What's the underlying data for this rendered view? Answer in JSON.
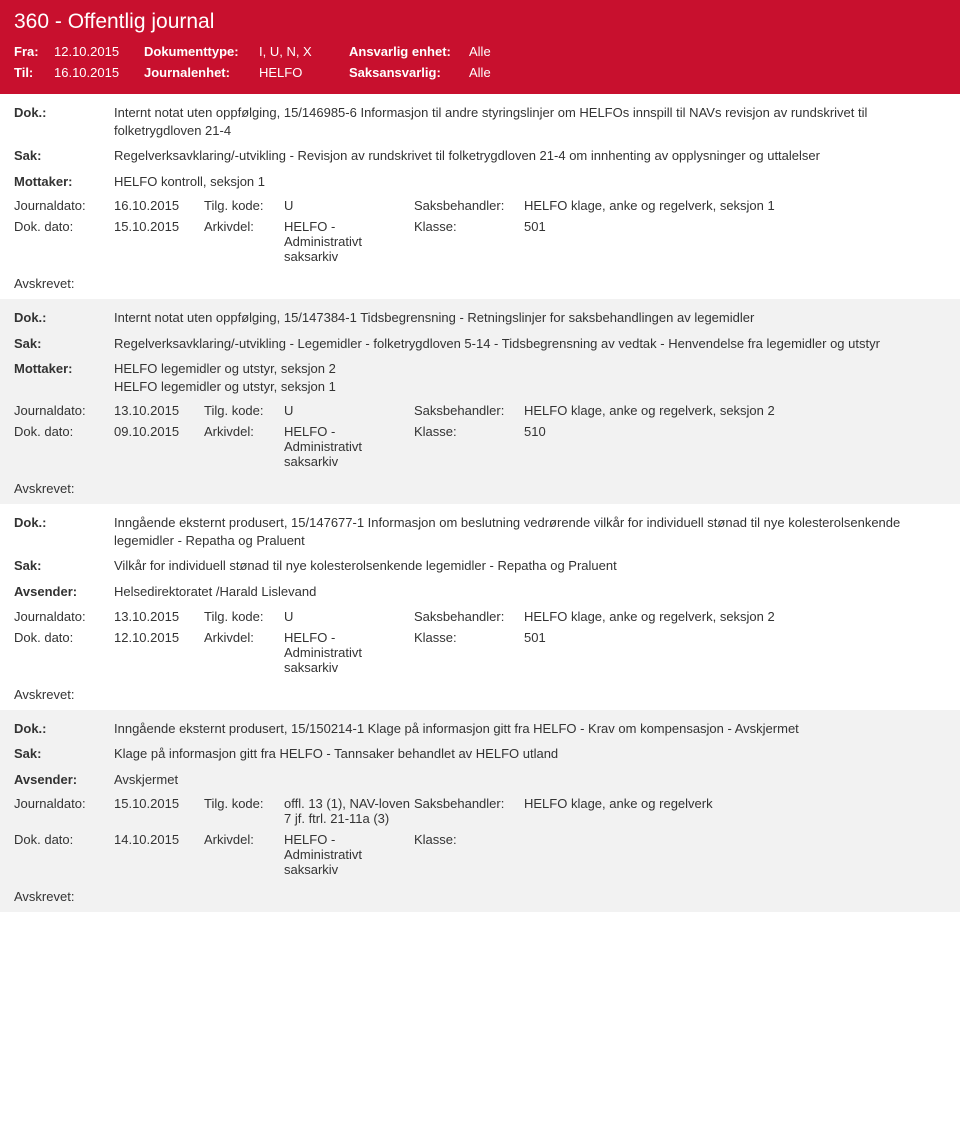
{
  "header": {
    "title": "360 - Offentlig journal",
    "fra_label": "Fra:",
    "til_label": "Til:",
    "fra": "12.10.2015",
    "til": "16.10.2015",
    "doktype_label": "Dokumenttype:",
    "journalenhet_label": "Journalenhet:",
    "doktype": "I, U, N, X",
    "journalenhet": "HELFO",
    "ansvarlig_label": "Ansvarlig enhet:",
    "saksansvarlig_label": "Saksansvarlig:",
    "ansvarlig": "Alle",
    "saksansvarlig": "Alle"
  },
  "labels": {
    "dok": "Dok.:",
    "sak": "Sak:",
    "mottaker": "Mottaker:",
    "avsender": "Avsender:",
    "journaldato": "Journaldato:",
    "tilgkode": "Tilg. kode:",
    "saksbehandler": "Saksbehandler:",
    "dokdato": "Dok. dato:",
    "arkivdel": "Arkivdel:",
    "klasse": "Klasse:",
    "avskrevet": "Avskrevet:"
  },
  "arkivdel_value": "HELFO - Administrativt saksarkiv",
  "entries": [
    {
      "alt": false,
      "dok": "Internt notat uten oppfølging, 15/146985-6 Informasjon til andre styringslinjer om HELFOs innspill til NAVs revisjon av rundskrivet til folketrygdloven 21-4",
      "sak": "Regelverksavklaring/-utvikling - Revisjon av rundskrivet til folketrygdloven 21-4 om innhenting av opplysninger og uttalelser",
      "mottaker": [
        "HELFO kontroll, seksjon 1"
      ],
      "avsender": null,
      "journaldato": "16.10.2015",
      "tilgkode": "U",
      "saksbehandler": "HELFO klage, anke og regelverk, seksjon 1",
      "dokdato": "15.10.2015",
      "klasse": "501"
    },
    {
      "alt": true,
      "dok": "Internt notat uten oppfølging, 15/147384-1 Tidsbegrensning - Retningslinjer for saksbehandlingen av legemidler",
      "sak": "Regelverksavklaring/-utvikling - Legemidler - folketrygdloven 5-14 - Tidsbegrensning av vedtak - Henvendelse fra legemidler og utstyr",
      "mottaker": [
        "HELFO legemidler og utstyr, seksjon 2",
        "HELFO legemidler og utstyr, seksjon 1"
      ],
      "avsender": null,
      "journaldato": "13.10.2015",
      "tilgkode": "U",
      "saksbehandler": "HELFO klage, anke og regelverk, seksjon 2",
      "dokdato": "09.10.2015",
      "klasse": "510"
    },
    {
      "alt": false,
      "dok": "Inngående eksternt produsert, 15/147677-1 Informasjon om beslutning vedrørende vilkår for individuell stønad til nye kolesterolsenkende legemidler - Repatha og Praluent",
      "sak": "Vilkår for individuell stønad til nye kolesterolsenkende legemidler - Repatha og Praluent",
      "mottaker": null,
      "avsender": "Helsedirektoratet /Harald Lislevand",
      "journaldato": "13.10.2015",
      "tilgkode": "U",
      "saksbehandler": "HELFO klage, anke og regelverk, seksjon 2",
      "dokdato": "12.10.2015",
      "klasse": "501"
    },
    {
      "alt": true,
      "dok": "Inngående eksternt produsert, 15/150214-1 Klage på informasjon gitt fra HELFO - Krav om kompensasjon - Avskjermet",
      "sak": "Klage på informasjon gitt fra HELFO - Tannsaker behandlet av HELFO utland",
      "mottaker": null,
      "avsender": "Avskjermet",
      "journaldato": "15.10.2015",
      "tilgkode": "offl. 13 (1), NAV-loven 7 jf. ftrl. 21-11a (3)",
      "saksbehandler": "HELFO klage, anke og regelverk",
      "dokdato": "14.10.2015",
      "klasse": ""
    }
  ]
}
